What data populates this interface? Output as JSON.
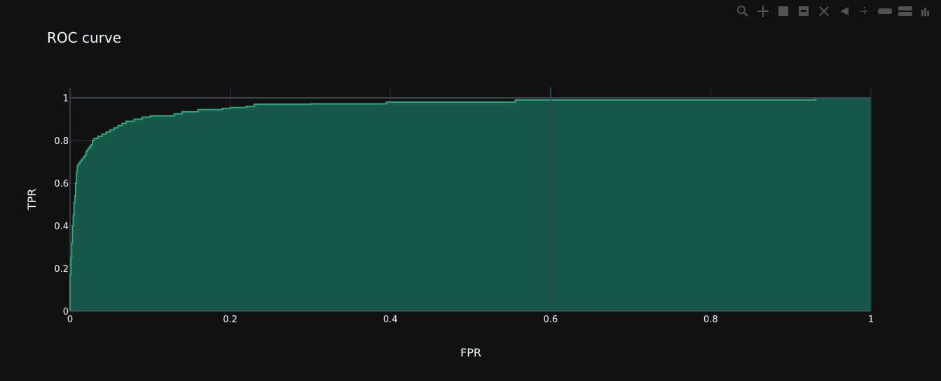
{
  "chart_data": {
    "type": "area",
    "title": "ROC curve",
    "xlabel": "FPR",
    "ylabel": "TPR",
    "xlim": [
      0,
      1
    ],
    "ylim": [
      0,
      1
    ],
    "grid": true,
    "xticks": [
      0,
      0.2,
      0.4,
      0.6,
      0.8,
      1
    ],
    "xtick_labels": [
      "0",
      "0.2",
      "0.4",
      "0.6",
      "0.8",
      "1"
    ],
    "yticks": [
      0,
      0.2,
      0.4,
      0.6,
      0.8,
      1
    ],
    "ytick_labels": [
      "0",
      "0.2",
      "0.4",
      "0.6",
      "0.8",
      "1"
    ],
    "reference_lines": [
      {
        "axis": "y",
        "value": 1
      },
      {
        "axis": "x",
        "value": 0.6
      }
    ],
    "series": [
      {
        "color": "#2ea77f",
        "fill_color": "#17584a",
        "x": [
          0,
          0,
          0.001,
          0.002,
          0.003,
          0.004,
          0.005,
          0.006,
          0.007,
          0.008,
          0.009,
          0.01,
          0.012,
          0.014,
          0.016,
          0.018,
          0.02,
          0.022,
          0.024,
          0.026,
          0.028,
          0.03,
          0.035,
          0.04,
          0.045,
          0.05,
          0.055,
          0.06,
          0.065,
          0.07,
          0.08,
          0.09,
          0.1,
          0.12,
          0.13,
          0.14,
          0.16,
          0.18,
          0.19,
          0.2,
          0.22,
          0.23,
          0.3,
          0.39,
          0.395,
          0.5,
          0.555,
          0.556,
          0.7,
          0.8,
          0.93,
          0.931,
          1
        ],
        "y": [
          0,
          0.17,
          0.25,
          0.32,
          0.4,
          0.45,
          0.51,
          0.54,
          0.6,
          0.65,
          0.68,
          0.69,
          0.7,
          0.71,
          0.72,
          0.73,
          0.75,
          0.76,
          0.77,
          0.78,
          0.8,
          0.81,
          0.82,
          0.83,
          0.84,
          0.85,
          0.86,
          0.87,
          0.88,
          0.89,
          0.9,
          0.91,
          0.915,
          0.915,
          0.925,
          0.935,
          0.945,
          0.945,
          0.95,
          0.955,
          0.96,
          0.97,
          0.972,
          0.972,
          0.98,
          0.98,
          0.98,
          0.99,
          0.99,
          0.99,
          0.99,
          1.0,
          1.0
        ]
      }
    ]
  },
  "modebar": {
    "buttons": [
      "camera-icon",
      "zoom-icon",
      "pan-icon",
      "zoom-in-icon",
      "zoom-out-icon",
      "autoscale-icon",
      "reset-icon",
      "spike-icon",
      "hover-closest-icon",
      "hover-compare-icon",
      "plotly-logo-icon"
    ]
  }
}
